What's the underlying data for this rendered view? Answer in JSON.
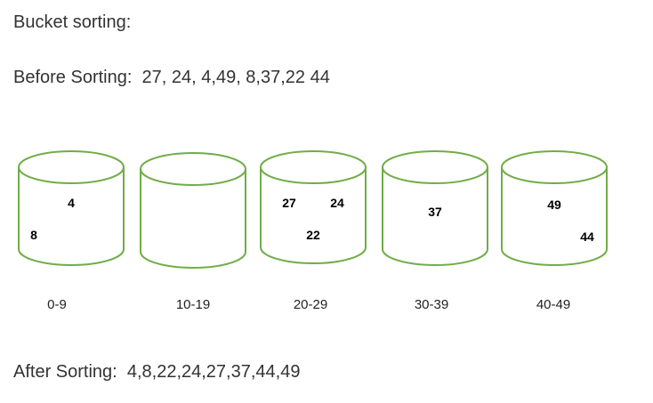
{
  "title": "Bucket sorting:",
  "before": {
    "label": "Before Sorting:",
    "values": "27, 24, 4,49, 8,37,22 44"
  },
  "after": {
    "label": "After Sorting:",
    "values": "4,8,22,24,27,37,44,49"
  },
  "colors": {
    "bucket_stroke": "#70ad47"
  },
  "buckets": [
    {
      "range": "0-9",
      "items": [
        "4",
        "8"
      ]
    },
    {
      "range": "10-19",
      "items": []
    },
    {
      "range": "20-29",
      "items": [
        "27",
        "24",
        "22"
      ]
    },
    {
      "range": "30-39",
      "items": [
        "37"
      ]
    },
    {
      "range": "40-49",
      "items": [
        "49",
        "44"
      ]
    }
  ]
}
